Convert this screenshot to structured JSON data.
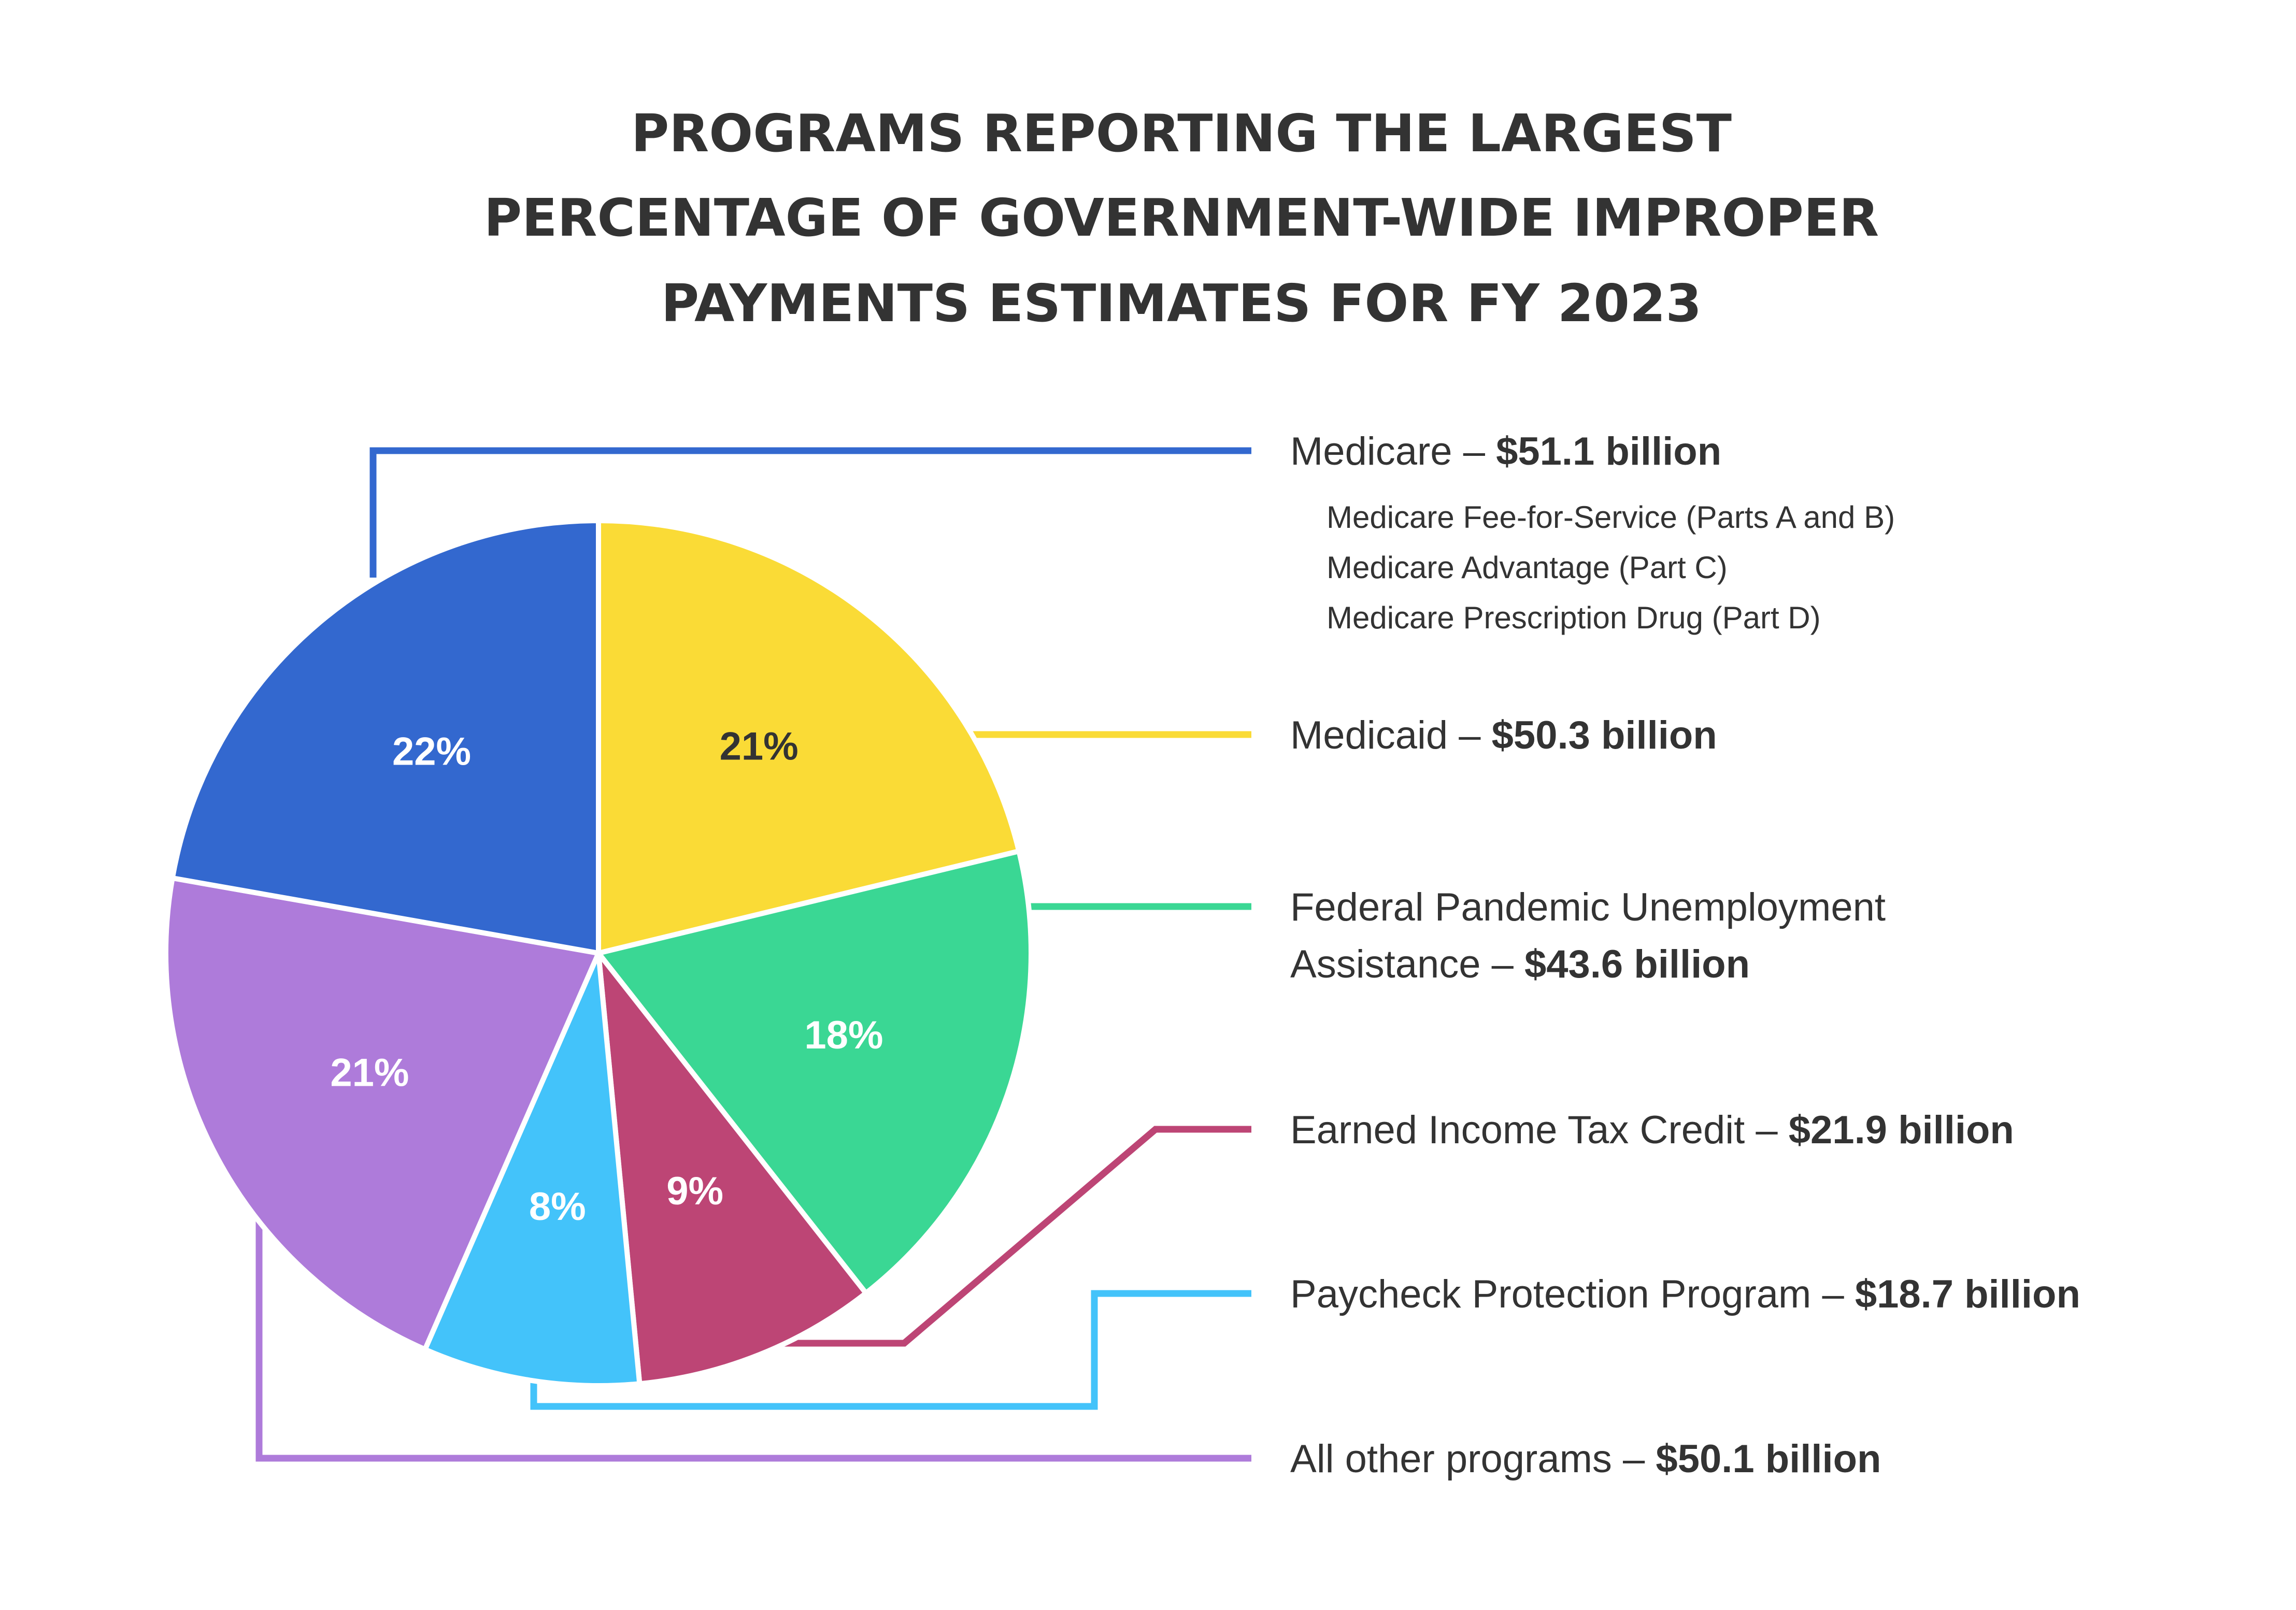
{
  "chart_data": {
    "type": "pie",
    "title_lines": [
      "PROGRAMS REPORTING THE LARGEST",
      "PERCENTAGE OF GOVERNMENT-WIDE IMPROPER",
      "PAYMENTS ESTIMATES FOR FY 2023"
    ],
    "slices": [
      {
        "id": "medicaid",
        "percent": 21,
        "percent_label": "21%",
        "color": "#FADB36",
        "label_color": "#333333",
        "legend_name": "Medicaid – ",
        "legend_value": "$50.3 billion",
        "legend_name_2": "",
        "sub_items": []
      },
      {
        "id": "pandemic-unemployment",
        "percent": 18,
        "percent_label": "18%",
        "color": "#3AD794",
        "label_color": "#ffffff",
        "legend_name": "Federal Pandemic Unemployment",
        "legend_value": "$43.6 billion",
        "legend_name_2": "Assistance – ",
        "sub_items": []
      },
      {
        "id": "eitc",
        "percent": 9,
        "percent_label": "9%",
        "color": "#BD4575",
        "label_color": "#ffffff",
        "legend_name": "Earned Income Tax Credit – ",
        "legend_value": "$21.9 billion",
        "legend_name_2": "",
        "sub_items": []
      },
      {
        "id": "ppp",
        "percent": 8,
        "percent_label": "8%",
        "color": "#43C3FA",
        "label_color": "#ffffff",
        "legend_name": "Paycheck Protection Program – ",
        "legend_value": "$18.7 billion",
        "legend_name_2": "",
        "sub_items": []
      },
      {
        "id": "all-other",
        "percent": 21,
        "percent_label": "21%",
        "color": "#AE7BDA",
        "label_color": "#ffffff",
        "legend_name": "All other programs – ",
        "legend_value": "$50.1 billion",
        "legend_name_2": "",
        "sub_items": []
      },
      {
        "id": "medicare",
        "percent": 22,
        "percent_label": "22%",
        "color": "#3368CF",
        "label_color": "#ffffff",
        "legend_name": "Medicare – ",
        "legend_value": "$51.1 billion",
        "legend_name_2": "",
        "sub_items": [
          "Medicare Fee-for-Service (Parts A and B)",
          "Medicare Advantage (Part C)",
          "Medicare Prescription Drug (Part D)"
        ]
      }
    ]
  }
}
